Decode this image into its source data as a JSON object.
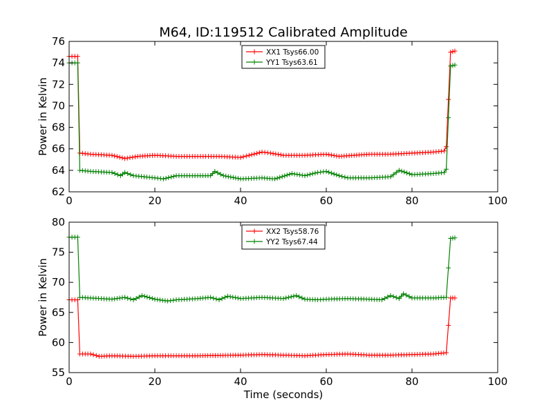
{
  "chart_data": {
    "type": "line",
    "title": "M64, ID:119512 Calibrated Amplitude",
    "xlabel": "Time (seconds)",
    "colors": {
      "XX": "#ff0000",
      "YY": "#008000"
    },
    "panels": [
      {
        "ylabel": "Power in Kelvin",
        "xlim": [
          0,
          100
        ],
        "ylim": [
          62,
          76
        ],
        "xticks": [
          "0",
          "20",
          "40",
          "60",
          "80",
          "100"
        ],
        "yticks": [
          "62",
          "64",
          "66",
          "68",
          "70",
          "72",
          "74",
          "76"
        ],
        "legend_loc": "upper center",
        "series": [
          {
            "name": "XX1 Tsys66.00",
            "color": "#ff0000",
            "x": [
              0,
              2,
              2.5,
              5,
              10,
              13,
              16,
              20,
              25,
              30,
              35,
              40,
              42,
              45,
              47,
              50,
              55,
              60,
              63,
              70,
              75,
              80,
              85,
              87.5,
              88,
              89,
              90
            ],
            "y": [
              74.6,
              74.6,
              65.6,
              65.5,
              65.4,
              65.1,
              65.3,
              65.4,
              65.3,
              65.3,
              65.3,
              65.2,
              65.4,
              65.7,
              65.6,
              65.4,
              65.4,
              65.5,
              65.3,
              65.5,
              65.5,
              65.6,
              65.7,
              65.8,
              66.2,
              75.0,
              75.1
            ]
          },
          {
            "name": "YY1 Tsys63.61",
            "color": "#008000",
            "x": [
              0,
              2,
              2.5,
              5,
              10,
              12,
              13,
              15,
              20,
              22,
              25,
              30,
              33,
              34,
              36,
              40,
              45,
              48,
              52,
              55,
              58,
              60,
              63,
              65,
              70,
              75,
              77,
              80,
              85,
              87.5,
              88,
              89,
              90
            ],
            "y": [
              74.0,
              74.0,
              64.0,
              63.9,
              63.8,
              63.5,
              63.8,
              63.5,
              63.3,
              63.2,
              63.5,
              63.5,
              63.5,
              63.9,
              63.5,
              63.2,
              63.3,
              63.2,
              63.7,
              63.5,
              63.8,
              63.9,
              63.5,
              63.3,
              63.3,
              63.4,
              64.0,
              63.6,
              63.7,
              63.8,
              64.1,
              73.7,
              73.8
            ]
          }
        ]
      },
      {
        "ylabel": "Power in Kelvin",
        "xlim": [
          0,
          100
        ],
        "ylim": [
          55,
          80
        ],
        "xticks": [
          "0",
          "20",
          "40",
          "60",
          "80",
          "100"
        ],
        "yticks": [
          "55",
          "60",
          "65",
          "70",
          "75",
          "80"
        ],
        "legend_loc": "upper center",
        "series": [
          {
            "name": "XX2 Tsys58.76",
            "color": "#ff0000",
            "x": [
              0,
              2,
              2.5,
              5,
              7,
              10,
              15,
              20,
              25,
              30,
              40,
              45,
              50,
              55,
              60,
              65,
              70,
              75,
              80,
              85,
              88,
              89,
              90
            ],
            "y": [
              67.1,
              67.1,
              58.1,
              58.1,
              57.7,
              57.8,
              57.7,
              57.8,
              57.8,
              57.8,
              57.9,
              58.0,
              57.9,
              57.8,
              58.0,
              58.1,
              57.9,
              57.9,
              58.0,
              58.1,
              58.3,
              67.4,
              67.4
            ]
          },
          {
            "name": "YY2 Tsys67.44",
            "color": "#008000",
            "x": [
              0,
              2,
              2.5,
              5,
              10,
              13,
              15,
              17,
              20,
              23,
              25,
              30,
              33,
              35,
              37,
              40,
              45,
              50,
              53,
              55,
              58,
              60,
              65,
              70,
              73,
              75,
              77,
              78,
              80,
              85,
              88,
              89,
              90
            ],
            "y": [
              77.5,
              77.5,
              67.5,
              67.4,
              67.2,
              67.5,
              67.1,
              67.8,
              67.2,
              66.9,
              67.1,
              67.3,
              67.5,
              67.1,
              67.7,
              67.3,
              67.5,
              67.3,
              67.8,
              67.2,
              67.1,
              67.2,
              67.3,
              67.2,
              67.1,
              67.8,
              67.3,
              68.1,
              67.4,
              67.4,
              67.5,
              77.3,
              77.4
            ]
          }
        ]
      }
    ]
  }
}
